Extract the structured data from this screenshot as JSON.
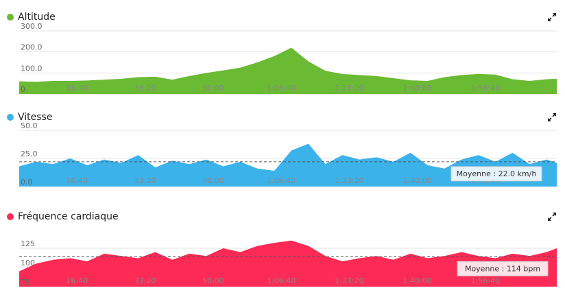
{
  "chart_data": [
    {
      "type": "area",
      "title": "Altitude",
      "color": "#6aba34",
      "grid": true,
      "xlim": [
        150,
        8050
      ],
      "ylim": [
        0,
        300
      ],
      "xticks": [
        {
          "value": 1000,
          "label": "16:40"
        },
        {
          "value": 2000,
          "label": "33:20"
        },
        {
          "value": 3000,
          "label": "50:00"
        },
        {
          "value": 4000,
          "label": "1:06:40"
        },
        {
          "value": 5000,
          "label": "1:23:20"
        },
        {
          "value": 6000,
          "label": "1:40:00"
        },
        {
          "value": 7000,
          "label": "1:56:40"
        }
      ],
      "yticks": [
        0,
        {
          "value": 100,
          "label": "100.0"
        },
        {
          "value": 200,
          "label": "200.0"
        },
        {
          "value": 300,
          "label": "300.0"
        }
      ],
      "x": [
        150,
        400,
        650,
        900,
        1150,
        1400,
        1650,
        1900,
        2150,
        2400,
        2650,
        2900,
        3150,
        3400,
        3650,
        3900,
        4150,
        4400,
        4650,
        4900,
        5150,
        5400,
        5650,
        5900,
        6150,
        6400,
        6650,
        6900,
        7150,
        7400,
        7650,
        7900,
        8050
      ],
      "values": [
        60,
        58,
        62,
        62,
        64,
        68,
        72,
        80,
        82,
        68,
        85,
        100,
        112,
        125,
        150,
        180,
        220,
        155,
        110,
        95,
        90,
        85,
        75,
        65,
        62,
        80,
        90,
        95,
        92,
        70,
        62,
        70,
        72
      ]
    },
    {
      "type": "area",
      "title": "Vitesse",
      "color": "#3bb2ea",
      "grid": true,
      "xlim": [
        150,
        8050
      ],
      "ylim": [
        0,
        50
      ],
      "xticks": [
        {
          "value": 1000,
          "label": "16:40"
        },
        {
          "value": 2000,
          "label": "33:20"
        },
        {
          "value": 3000,
          "label": "50:00"
        },
        {
          "value": 4000,
          "label": "1:06:40"
        },
        {
          "value": 5000,
          "label": "1:23:20"
        },
        {
          "value": 6000,
          "label": "1:40:00"
        },
        {
          "value": 7000,
          "label": "1:56:40"
        }
      ],
      "yticks": [
        {
          "value": 0,
          "label": "0.0"
        },
        {
          "value": 25,
          "label": "25.0"
        },
        {
          "value": 50,
          "label": "50.0"
        }
      ],
      "x": [
        150,
        400,
        650,
        900,
        1150,
        1400,
        1650,
        1900,
        2150,
        2400,
        2650,
        2900,
        3150,
        3400,
        3650,
        3900,
        4150,
        4400,
        4650,
        4900,
        5150,
        5400,
        5650,
        5900,
        6150,
        6400,
        6650,
        6900,
        7150,
        7400,
        7650,
        7900,
        8050
      ],
      "values": [
        18,
        22,
        20,
        25,
        19,
        24,
        21,
        28,
        17,
        23,
        20,
        24,
        18,
        22,
        16,
        14,
        32,
        38,
        20,
        28,
        24,
        26,
        22,
        30,
        19,
        16,
        24,
        28,
        22,
        30,
        20,
        24,
        21
      ],
      "average": 22.0,
      "average_label": "Moyenne : 22.0 km/h"
    },
    {
      "type": "area",
      "title": "Fréquence cardiaque",
      "color": "#fc2a54",
      "grid": true,
      "xlim": [
        150,
        8050
      ],
      "ylim": [
        75,
        150
      ],
      "xticks": [
        {
          "value": 1000,
          "label": "16:40"
        },
        {
          "value": 2000,
          "label": "33:20"
        },
        {
          "value": 3000,
          "label": "50:00"
        },
        {
          "value": 4000,
          "label": "1:06:40"
        },
        {
          "value": 5000,
          "label": "1:23:20"
        },
        {
          "value": 6000,
          "label": "1:40:00"
        },
        {
          "value": 7000,
          "label": "1:56:40"
        }
      ],
      "yticks": [
        75,
        100,
        125
      ],
      "x": [
        150,
        400,
        650,
        900,
        1150,
        1400,
        1650,
        1900,
        2150,
        2400,
        2650,
        2900,
        3150,
        3400,
        3650,
        3900,
        4150,
        4400,
        4650,
        4900,
        5150,
        5400,
        5650,
        5900,
        6150,
        6400,
        6650,
        6900,
        7150,
        7400,
        7650,
        7900,
        8050
      ],
      "values": [
        95,
        105,
        110,
        112,
        108,
        118,
        115,
        112,
        120,
        110,
        118,
        115,
        125,
        120,
        128,
        132,
        135,
        128,
        115,
        108,
        112,
        115,
        110,
        118,
        112,
        115,
        120,
        115,
        112,
        118,
        115,
        120,
        125
      ],
      "average": 114,
      "average_label": "Moyenne : 114 bpm"
    }
  ]
}
